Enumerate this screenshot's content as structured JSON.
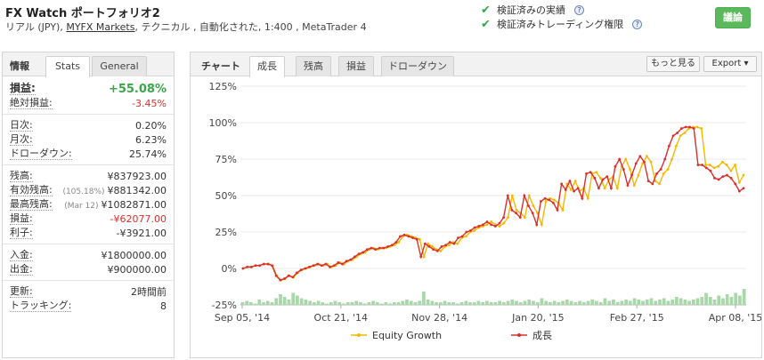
{
  "header": {
    "title": "FX Watch ポートフォリオ2",
    "subtitle_prefix": "リアル (JPY),",
    "subtitle_link": "MYFX Markets",
    "subtitle_suffix": ", テクニカル , 自動化された, 1:400 , MetaTrader 4",
    "verified": [
      "検証済みの実績",
      "検証済みトレーディング権限"
    ],
    "discuss_button": "議論",
    "help_glyph": "?"
  },
  "left": {
    "section_label": "情報",
    "tabs": [
      "Stats",
      "General"
    ],
    "gain": {
      "label": "損益:",
      "value": "+55.08%"
    },
    "rows1": [
      {
        "label": "絶対損益:",
        "value": "-3.45%",
        "color": "red"
      }
    ],
    "rows2": [
      {
        "label": "日次:",
        "value": "0.20%"
      },
      {
        "label": "月次:",
        "value": "6.23%"
      },
      {
        "label": "ドローダウン:",
        "value": "25.74%"
      }
    ],
    "rows3": [
      {
        "label": "残高:",
        "pre": "",
        "value": "¥837923.00"
      },
      {
        "label": "有効残高:",
        "pre": "(105.18%)",
        "value": "¥881342.00"
      },
      {
        "label": "最高残高:",
        "pre": "(Mar 12)",
        "value": "¥1082871.00"
      },
      {
        "label": "損益:",
        "pre": "",
        "value": "-¥62077.00",
        "color": "red"
      },
      {
        "label": "利子:",
        "pre": "",
        "value": "-¥3921.00"
      }
    ],
    "rows4": [
      {
        "label": "入金:",
        "value": "¥1800000.00"
      },
      {
        "label": "出金:",
        "value": "¥900000.00"
      }
    ],
    "rows5": [
      {
        "label": "更新:",
        "value": "2時間前"
      },
      {
        "label": "トラッキング:",
        "value": "8"
      }
    ]
  },
  "right": {
    "chart_label": "チャート",
    "tabs": [
      "成長",
      "残高",
      "損益",
      "ドローダウン"
    ],
    "buttons": {
      "zoom": "もっと見る",
      "export": "Export ▾"
    }
  },
  "chart_data": {
    "type": "line",
    "yticks": [
      "125%",
      "100%",
      "75%",
      "50%",
      "25%",
      "0%",
      "-25%"
    ],
    "ylim": [
      -25,
      125
    ],
    "xticks": [
      "Sep 05, '14",
      "Oct 21, '14",
      "Nov 28, '14",
      "Jan 20, '15",
      "Feb 27, '15",
      "Apr 08, '15"
    ],
    "legend": [
      "Equity Growth",
      "成長"
    ],
    "colors": {
      "equity": "#f5b800",
      "growth": "#d9302c",
      "bars": "#a8d8a8",
      "grid": "#e8e8e8"
    },
    "growth": [
      0,
      1,
      1,
      2,
      2,
      3,
      3,
      2,
      -5,
      -8,
      -7,
      -5,
      -6,
      -3,
      -1,
      0,
      1,
      2,
      3,
      2,
      3,
      1,
      2,
      4,
      3,
      5,
      6,
      8,
      10,
      11,
      13,
      14,
      13,
      14,
      14,
      15,
      16,
      18,
      22,
      23,
      22,
      21,
      20,
      8,
      17,
      15,
      13,
      12,
      15,
      16,
      18,
      17,
      21,
      22,
      25,
      26,
      28,
      29,
      30,
      32,
      30,
      29,
      31,
      35,
      50,
      40,
      38,
      35,
      50,
      43,
      38,
      30,
      46,
      48,
      47,
      45,
      40,
      58,
      54,
      60,
      53,
      55,
      48,
      65,
      66,
      62,
      55,
      61,
      63,
      55,
      70,
      75,
      68,
      57,
      64,
      72,
      77,
      73,
      60,
      58,
      65,
      68,
      75,
      84,
      91,
      93,
      96,
      97,
      97,
      96,
      71,
      71,
      69,
      67,
      62,
      61,
      63,
      64,
      62,
      58,
      53,
      55
    ],
    "equity": [
      0,
      1,
      1,
      2,
      2,
      3,
      3,
      2,
      -5,
      -8,
      -7,
      -5,
      -6,
      -3,
      -1,
      0,
      1,
      2,
      3,
      2,
      3,
      1,
      2,
      4,
      3,
      5,
      6,
      8,
      10,
      11,
      13,
      14,
      13,
      14,
      14,
      15,
      16,
      18,
      22,
      23,
      22,
      21,
      20,
      8,
      17,
      15,
      13,
      12,
      15,
      16,
      18,
      17,
      21,
      22,
      25,
      26,
      28,
      29,
      30,
      32,
      30,
      29,
      31,
      35,
      50,
      40,
      38,
      35,
      50,
      43,
      38,
      30,
      46,
      48,
      47,
      45,
      40,
      58,
      54,
      60,
      53,
      55,
      48,
      65,
      66,
      62,
      55,
      61,
      63,
      55,
      70,
      75,
      68,
      57,
      64,
      72,
      77,
      73,
      60,
      58,
      65,
      68,
      75,
      84,
      91,
      93,
      96,
      97,
      97,
      96,
      71,
      71,
      69,
      70,
      73,
      71,
      67,
      71,
      59,
      64
    ],
    "bars": [
      2,
      3,
      2,
      1,
      4,
      2,
      3,
      2,
      5,
      8,
      6,
      4,
      9,
      7,
      5,
      4,
      3,
      2,
      3,
      2,
      1,
      2,
      3,
      2,
      1,
      2,
      2,
      3,
      2,
      1,
      2,
      3,
      2,
      1,
      2,
      1,
      2,
      2,
      3,
      4,
      3,
      2,
      3,
      10,
      4,
      3,
      2,
      2,
      3,
      2,
      2,
      1,
      2,
      3,
      2,
      2,
      3,
      2,
      3,
      2,
      2,
      3,
      2,
      3,
      4,
      3,
      2,
      3,
      4,
      3,
      2,
      5,
      3,
      2,
      3,
      2,
      3,
      4,
      3,
      2,
      3,
      2,
      3,
      4,
      3,
      2,
      5,
      3,
      4,
      2,
      3,
      4,
      3,
      5,
      4,
      3,
      4,
      5,
      3,
      4,
      5,
      3,
      4,
      6,
      5,
      4,
      3,
      4,
      5,
      6,
      9,
      6,
      4,
      7,
      5,
      8,
      6,
      9,
      7,
      12
    ]
  }
}
